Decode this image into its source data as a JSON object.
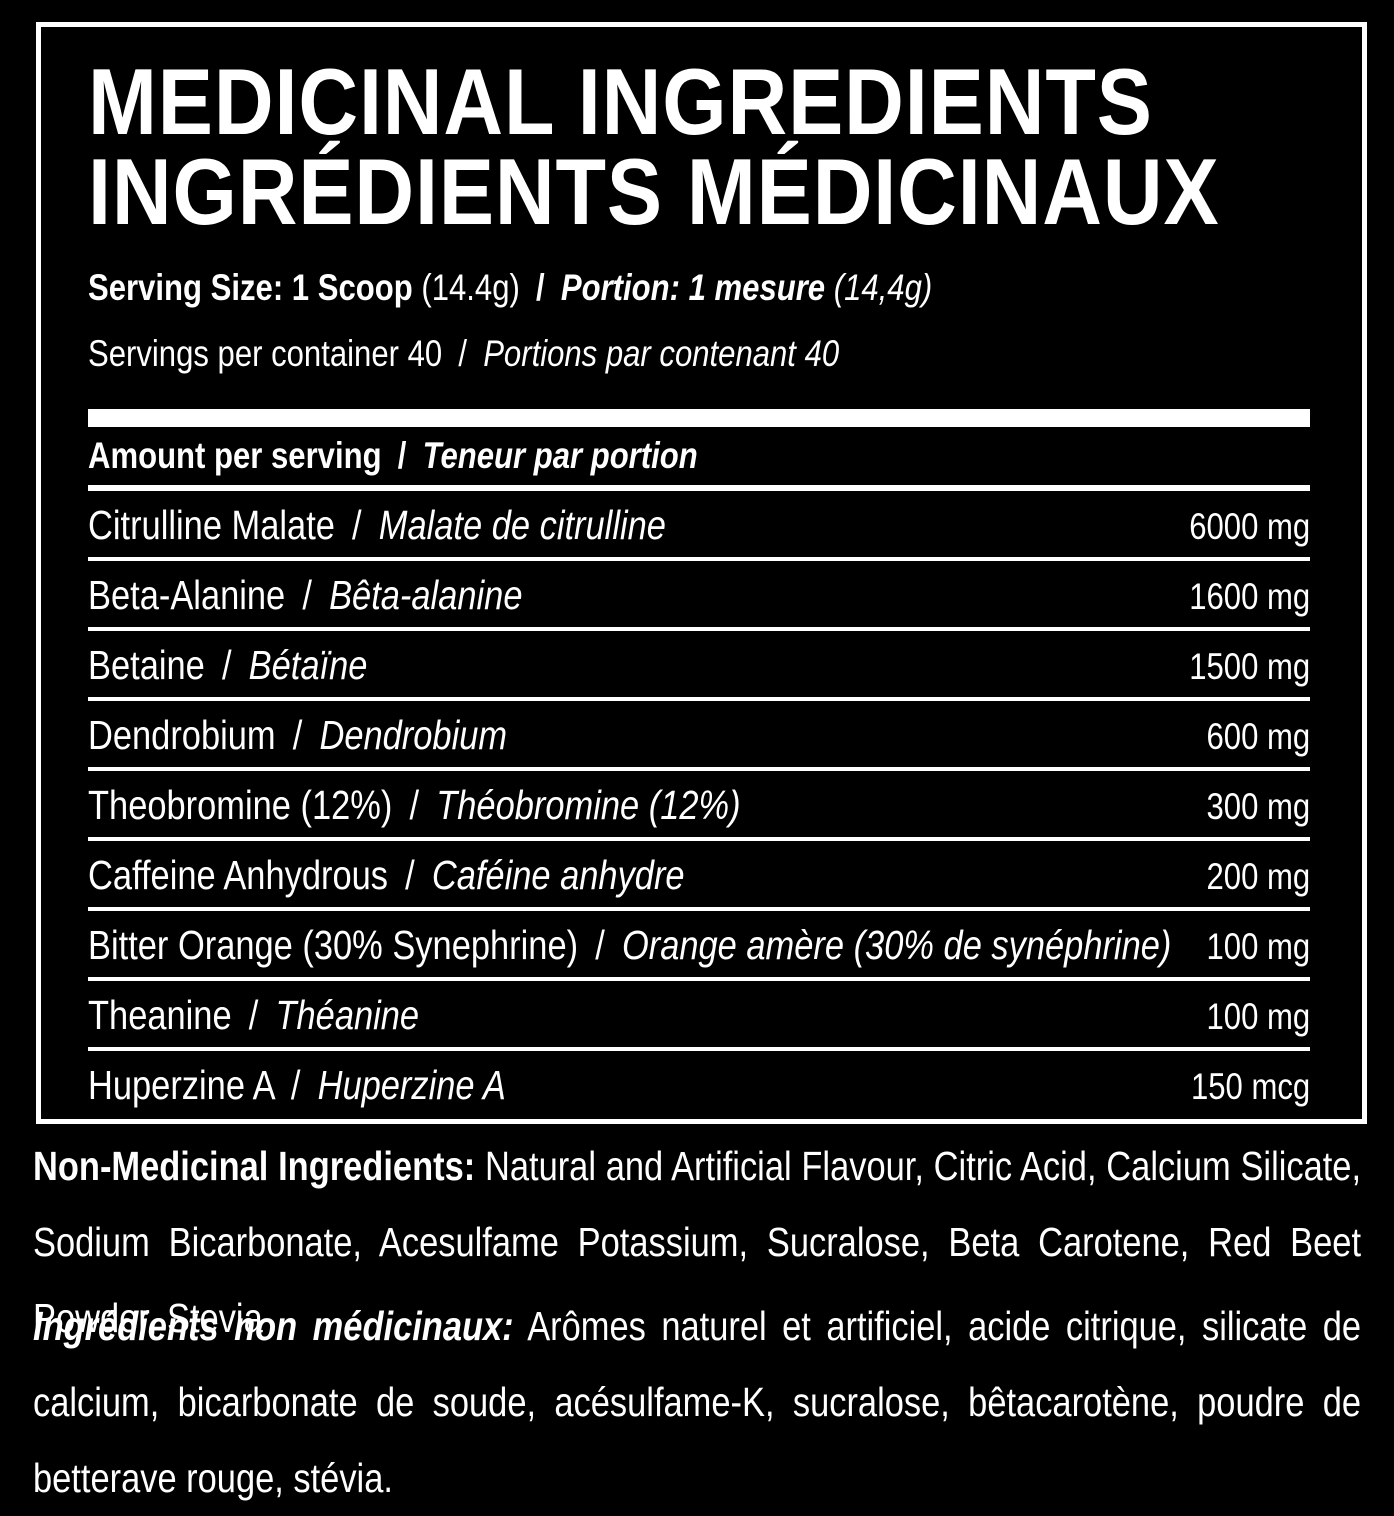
{
  "colors": {
    "background": "#000000",
    "text": "#ffffff",
    "border": "#ffffff"
  },
  "panel": {
    "slash": "/",
    "title_line1": "MEDICINAL INGREDIENTS",
    "title_line2": "INGRÉDIENTS MÉDICINAUX",
    "serving": {
      "en_bold": "Serving Size: 1 Scoop",
      "en_paren": "(14.4g)",
      "fr_bold": "Portion: 1 mesure",
      "fr_paren": "(14,4g)"
    },
    "servings_per_container": {
      "en": "Servings per container 40",
      "fr": "Portions par contenant 40"
    },
    "amount_header": {
      "en": "Amount per serving",
      "fr": "Teneur par portion"
    },
    "rows": [
      {
        "en": "Citrulline Malate",
        "fr": "Malate de citrulline",
        "amount": "6000 mg"
      },
      {
        "en": "Beta-Alanine",
        "fr": "Bêta-alanine",
        "amount": "1600 mg"
      },
      {
        "en": "Betaine",
        "fr": "Bétaïne",
        "amount": "1500 mg"
      },
      {
        "en": "Dendrobium",
        "fr": "Dendrobium",
        "amount": "600 mg"
      },
      {
        "en": "Theobromine (12%)",
        "fr": "Théobromine (12%)",
        "amount": "300 mg"
      },
      {
        "en": "Caffeine Anhydrous",
        "fr": "Caféine anhydre",
        "amount": "200 mg"
      },
      {
        "en": "Bitter Orange (30% Synephrine)",
        "fr": "Orange amère (30% de synéphrine)",
        "amount": "100 mg"
      },
      {
        "en": "Theanine",
        "fr": "Théanine",
        "amount": "100 mg"
      },
      {
        "en": "Huperzine A",
        "fr": "Huperzine A",
        "amount": "150 mcg"
      }
    ]
  },
  "non_medicinal": {
    "en_label": "Non-Medicinal Ingredients:",
    "en_text": " Natural and Artificial Flavour, Citric Acid, Calcium Silicate, Sodium Bicarbonate, Acesulfame Potassium, Sucralose, Beta Carotene, Red Beet Powder, Stevia",
    "fr_label": "Ingrédients non médicinaux:",
    "fr_text": " Arômes naturel et artificiel, acide citrique, silicate de calcium, bicarbonate de soude, acésulfame-K, sucralose, bêtacarotène, poudre de betterave rouge, stévia."
  }
}
